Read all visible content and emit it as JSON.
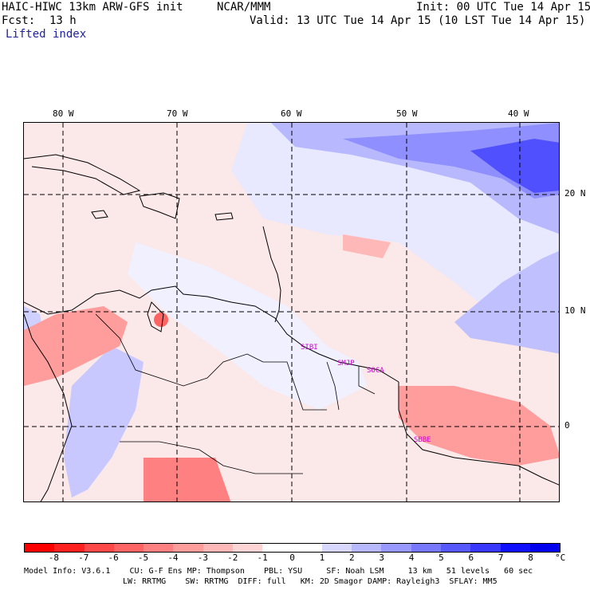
{
  "header": {
    "model_title": "HAIC-HIWC 13km ARW-GFS init",
    "org": "NCAR/MMM",
    "init_label": "Init: 00 UTC Tue 14 Apr 15",
    "fcst_label": "Fcst:",
    "fcst_value": "13 h",
    "valid_label": "Valid: 13 UTC Tue 14 Apr 15 (10 LST Tue 14 Apr 15)",
    "field_name": "Lifted index"
  },
  "map": {
    "lon_labels": [
      "80 W",
      "70 W",
      "60 W",
      "50 W",
      "40 W"
    ],
    "lat_labels": [
      "20 N",
      "10 N",
      "0"
    ],
    "stations": [
      "SIBI",
      "SMJP",
      "SOCA",
      "SBBE"
    ]
  },
  "legend": {
    "tick_labels": [
      "-8",
      "-7",
      "-6",
      "-5",
      "-4",
      "-3",
      "-2",
      "-1",
      "0",
      "1",
      "2",
      "3",
      "4",
      "5",
      "6",
      "7",
      "8"
    ],
    "unit": "°C",
    "colors": [
      "#ff0000",
      "#ff2020",
      "#ff4848",
      "#ff6464",
      "#ff8080",
      "#ff9c9c",
      "#ffb8b8",
      "#ffd4d4",
      "#ffffff",
      "#ffffff",
      "#d8d8ff",
      "#b8b8ff",
      "#9898ff",
      "#7878ff",
      "#5858ff",
      "#3838ff",
      "#1010ff",
      "#0000ee"
    ]
  },
  "model_info": {
    "line1": "Model Info: V3.6.1    CU: G-F Ens MP: Thompson    PBL: YSU     SF: Noah LSM     13 km   51 levels   60 sec",
    "line2": "LW: RRTMG    SW: RRTMG  DIFF: full   KM: 2D Smagor DAMP: Rayleigh3  SFLAY: MM5"
  }
}
